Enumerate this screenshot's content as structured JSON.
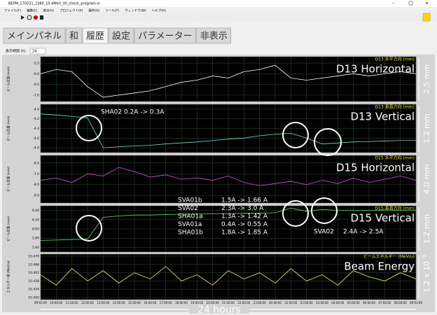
{
  "window": {
    "title": "BEPM_170531_2380_10.4MeV_Vil_check_program.vi",
    "menu": [
      "ファイル(F)",
      "編集(E)",
      "表示(V)",
      "プロジェクト(P)",
      "操作(O)",
      "ツール(T)",
      "ウィンドウ(W)",
      "ヘルプ(H)"
    ],
    "tabs": [
      "メインパネル",
      "和",
      "履歴",
      "設定",
      "パラメーター",
      "非表示"
    ],
    "display_time_label": "表示時間 (h)",
    "display_time_value": "24"
  },
  "time_axis": {
    "categories": [
      "09:01:09",
      "10:00:00",
      "11:00:00",
      "12:00:00",
      "13:00:00",
      "14:00:00",
      "15:00:00",
      "16:00:00",
      "17:00:00",
      "18:00:00",
      "19:00:00",
      "20:00:00",
      "21:00:00",
      "22:00:00",
      "23:00:00",
      "00:00:00",
      "01:00:00",
      "02:00:00",
      "03:00:00",
      "04:00:00",
      "05:00:00",
      "06:00:00",
      "07:00:00",
      "08:00:00",
      "09:01:09"
    ],
    "span_label": "24 hours"
  },
  "chart_data": [
    {
      "type": "line",
      "title": "D13 水平方向 (mm)",
      "big_label": "D13 Horizontal",
      "scale_label": "2.5 mm",
      "ylabel": "ビーム位置 (mm)",
      "ylim": [
        -7.3,
        -5.2
      ],
      "yticks": [
        -5.5,
        {
          "value": -6,
          "label": "-6.0"
        },
        -6.5,
        {
          "value": -7,
          "label": "-7.0"
        }
      ],
      "series": [
        {
          "color": "#ffffff",
          "values": [
            -6.0,
            -5.8,
            -5.9,
            -6.6,
            -7.1,
            -7.0,
            -6.9,
            -6.8,
            -6.6,
            -6.4,
            -6.3,
            -6.1,
            -6.2,
            -5.9,
            -5.8,
            -5.6,
            -6.2,
            -6.3,
            -6.2,
            -6.1,
            -6.0,
            -6.1,
            -6.0,
            -5.9,
            -6.0
          ]
        }
      ]
    },
    {
      "type": "line",
      "title": "D13 垂直方向 (mm)",
      "big_label": "D13 Vertical",
      "scale_label": "1.2 mm",
      "ylabel": "ビーム位置 (mm)",
      "ylim": [
        -4.9,
        -3.9
      ],
      "yticks": [
        {
          "value": -4,
          "label": "-4.0"
        },
        -4.2,
        -4.4,
        -4.6,
        -4.8
      ],
      "series": [
        {
          "color": "#7fd8d0",
          "values": [
            -4.1,
            -4.12,
            -4.15,
            -4.18,
            -4.8,
            -4.78,
            -4.76,
            -4.75,
            -4.72,
            -4.7,
            -4.68,
            -4.65,
            -4.62,
            -4.6,
            -4.55,
            -4.52,
            -4.5,
            -4.6,
            -4.72,
            -4.7,
            -4.68,
            -4.67,
            -4.66,
            -4.65,
            -4.65
          ]
        }
      ],
      "annotations": [
        "SHA02  0.2A -> 0.3A"
      ]
    },
    {
      "type": "line",
      "title": "D15 水平方向 (mm)",
      "big_label": "D15 Horizontal",
      "scale_label": "4.0 mm",
      "ylabel": "ビーム位置 (mm)",
      "ylim": [
        -9.7,
        -5.3
      ],
      "yticks": [
        {
          "value": -6,
          "label": "-6.0"
        },
        {
          "value": -7,
          "label": "-7.0"
        },
        {
          "value": -8,
          "label": "-8.0"
        },
        {
          "value": -9,
          "label": "-9.0"
        }
      ],
      "series": [
        {
          "color": "#d050d8",
          "values": [
            -7.6,
            -7.4,
            -7.8,
            -7.0,
            -7.2,
            -6.4,
            -6.8,
            -7.3,
            -7.1,
            -7.5,
            -7.4,
            -7.6,
            -7.2,
            -7.8,
            -8.1,
            -7.9,
            -7.7,
            -8.0,
            -7.6,
            -7.9,
            -7.4,
            -7.8,
            -7.5,
            -7.2,
            -7.6
          ]
        }
      ]
    },
    {
      "type": "line",
      "title": "D15 垂直方向 (mm)",
      "big_label": "D15 Vertical",
      "scale_label": "1.2 mm",
      "ylabel": "ビーム位置 (mm)",
      "ylim": [
        5.5,
        6.5
      ],
      "yticks": [
        {
          "value": 5.6,
          "label": "5.60"
        },
        {
          "value": 5.8,
          "label": "5.80"
        },
        {
          "value": 6,
          "label": "6.00"
        },
        {
          "value": 6.2,
          "label": "6.20"
        },
        {
          "value": 6.4,
          "label": "6.40"
        }
      ],
      "series": [
        {
          "color": "#60e060",
          "values": [
            5.75,
            5.76,
            5.77,
            5.78,
            6.25,
            6.28,
            6.3,
            6.3,
            6.31,
            6.32,
            6.32,
            6.33,
            6.33,
            6.34,
            6.34,
            6.35,
            6.45,
            6.38,
            6.42,
            6.4,
            6.4,
            6.4,
            6.41,
            6.4,
            6.4
          ]
        }
      ],
      "annotations": [
        [
          "SVA01b",
          "1.5A -> 1.66 A"
        ],
        [
          "SVA02",
          "2.3A -> 3.0 A"
        ],
        [
          "SHA01a",
          "1.3A -> 1.42 A"
        ],
        [
          "SVA01a",
          "0.4A -> 0.55 A"
        ],
        [
          "SHA01b",
          "1.8A -> 1.85 A"
        ],
        [
          "SVA02",
          "2.4A -> 2.5A"
        ]
      ]
    },
    {
      "type": "line",
      "title": "ビームエネルギー (MeV/u)",
      "big_label": "Beam Energy",
      "scale_label": "1.2 x 10",
      "scale_exponent": "-3",
      "ylabel": "エネルギー値 (MeV/u)",
      "ylim": [
        10.449,
        10.471
      ],
      "yticks": [
        {
          "value": 10.45,
          "label": "10.450"
        },
        {
          "value": 10.454,
          "label": "10.454"
        },
        {
          "value": 10.458,
          "label": "10.458"
        },
        {
          "value": 10.462,
          "label": "10.462"
        },
        {
          "value": 10.466,
          "label": "10.466"
        },
        {
          "value": 10.47,
          "label": "10.470"
        }
      ],
      "series": [
        {
          "color": "#f0f070",
          "values": [
            10.461,
            10.456,
            10.464,
            10.458,
            10.463,
            10.457,
            10.462,
            10.459,
            10.465,
            10.458,
            10.461,
            10.456,
            10.463,
            10.459,
            10.462,
            10.457,
            10.464,
            10.458,
            10.461,
            10.456,
            10.463,
            10.46,
            10.458,
            10.462,
            10.459
          ]
        }
      ]
    }
  ]
}
